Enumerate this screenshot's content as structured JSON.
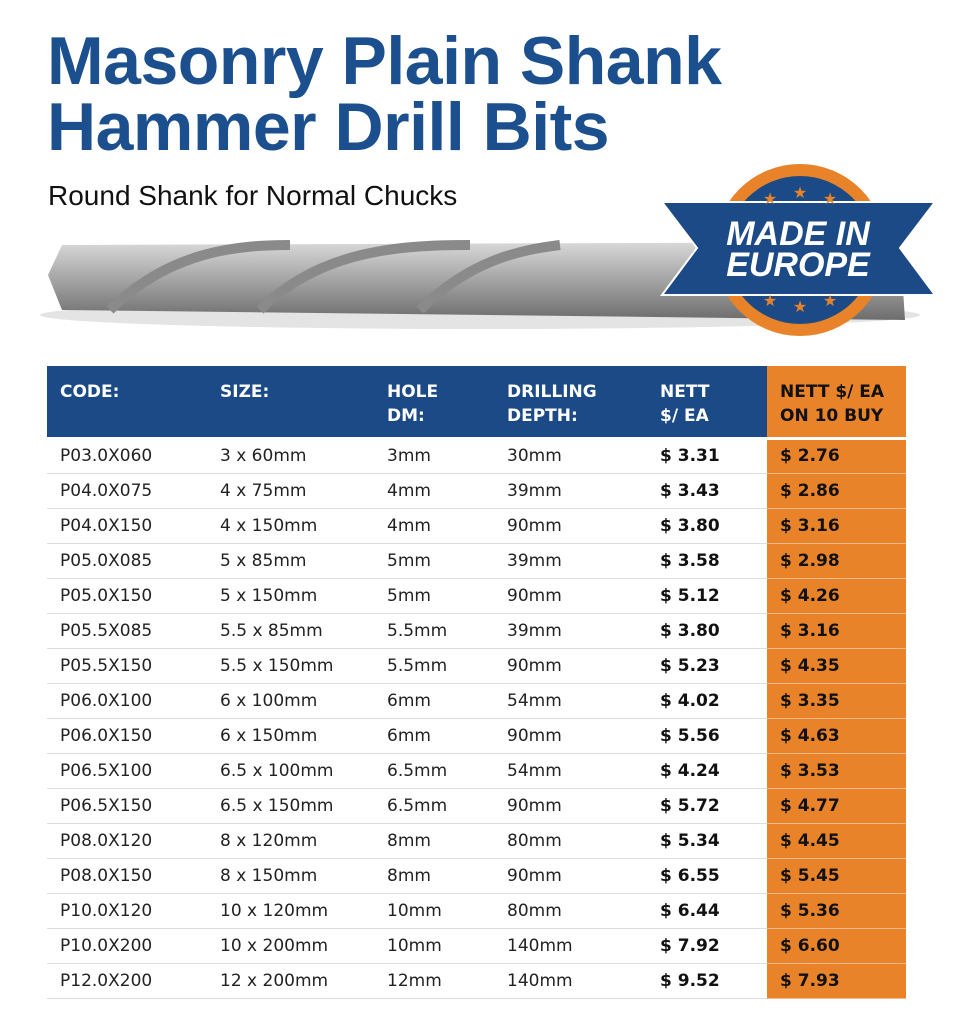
{
  "header": {
    "title": [
      "Masonry Plain Shank",
      "Hammer Drill Bits"
    ],
    "subtitle": "Round Shank for Normal Chucks"
  },
  "badge": [
    "MADE IN",
    "EUROPE"
  ],
  "table": {
    "header": [
      [
        "CODE:"
      ],
      [
        "SIZE:"
      ],
      [
        "HOLE",
        "DM:"
      ],
      [
        "DRILLING",
        "DEPTH:"
      ],
      [
        "NETT",
        "$/ EA"
      ],
      [
        "NETT $/ EA",
        "ON 10 BUY"
      ]
    ],
    "rows": [
      [
        "P03.0X060",
        "3 x 60mm",
        "3mm",
        "30mm",
        "$ 3.31",
        "$ 2.76"
      ],
      [
        "P04.0X075",
        "4 x 75mm",
        "4mm",
        "39mm",
        "$ 3.43",
        "$ 2.86"
      ],
      [
        "P04.0X150",
        "4 x 150mm",
        "4mm",
        "90mm",
        "$ 3.80",
        "$ 3.16"
      ],
      [
        "P05.0X085",
        "5 x 85mm",
        "5mm",
        "39mm",
        "$ 3.58",
        "$ 2.98"
      ],
      [
        "P05.0X150",
        "5 x 150mm",
        "5mm",
        "90mm",
        "$ 5.12",
        "$ 4.26"
      ],
      [
        "P05.5X085",
        "5.5 x 85mm",
        "5.5mm",
        "39mm",
        "$ 3.80",
        "$ 3.16"
      ],
      [
        "P05.5X150",
        "5.5 x 150mm",
        "5.5mm",
        "90mm",
        "$ 5.23",
        "$ 4.35"
      ],
      [
        "P06.0X100",
        "6 x 100mm",
        "6mm",
        "54mm",
        "$ 4.02",
        "$ 3.35"
      ],
      [
        "P06.0X150",
        "6 x 150mm",
        "6mm",
        "90mm",
        "$ 5.56",
        "$ 4.63"
      ],
      [
        "P06.5X100",
        "6.5 x 100mm",
        "6.5mm",
        "54mm",
        "$ 4.24",
        "$ 3.53"
      ],
      [
        "P06.5X150",
        "6.5 x 150mm",
        "6.5mm",
        "90mm",
        "$ 5.72",
        "$ 4.77"
      ],
      [
        "P08.0X120",
        "8 x 120mm",
        "8mm",
        "80mm",
        "$ 5.34",
        "$ 4.45"
      ],
      [
        "P08.0X150",
        "8 x 150mm",
        "8mm",
        "90mm",
        "$ 6.55",
        "$ 5.45"
      ],
      [
        "P10.0X120",
        "10 x 120mm",
        "10mm",
        "80mm",
        "$ 6.44",
        "$ 5.36"
      ],
      [
        "P10.0X200",
        "10 x 200mm",
        "10mm",
        "140mm",
        "$ 7.92",
        "$ 6.60"
      ],
      [
        "P12.0X200",
        "12 x 200mm",
        "12mm",
        "140mm",
        "$ 9.52",
        "$ 7.93"
      ]
    ]
  }
}
